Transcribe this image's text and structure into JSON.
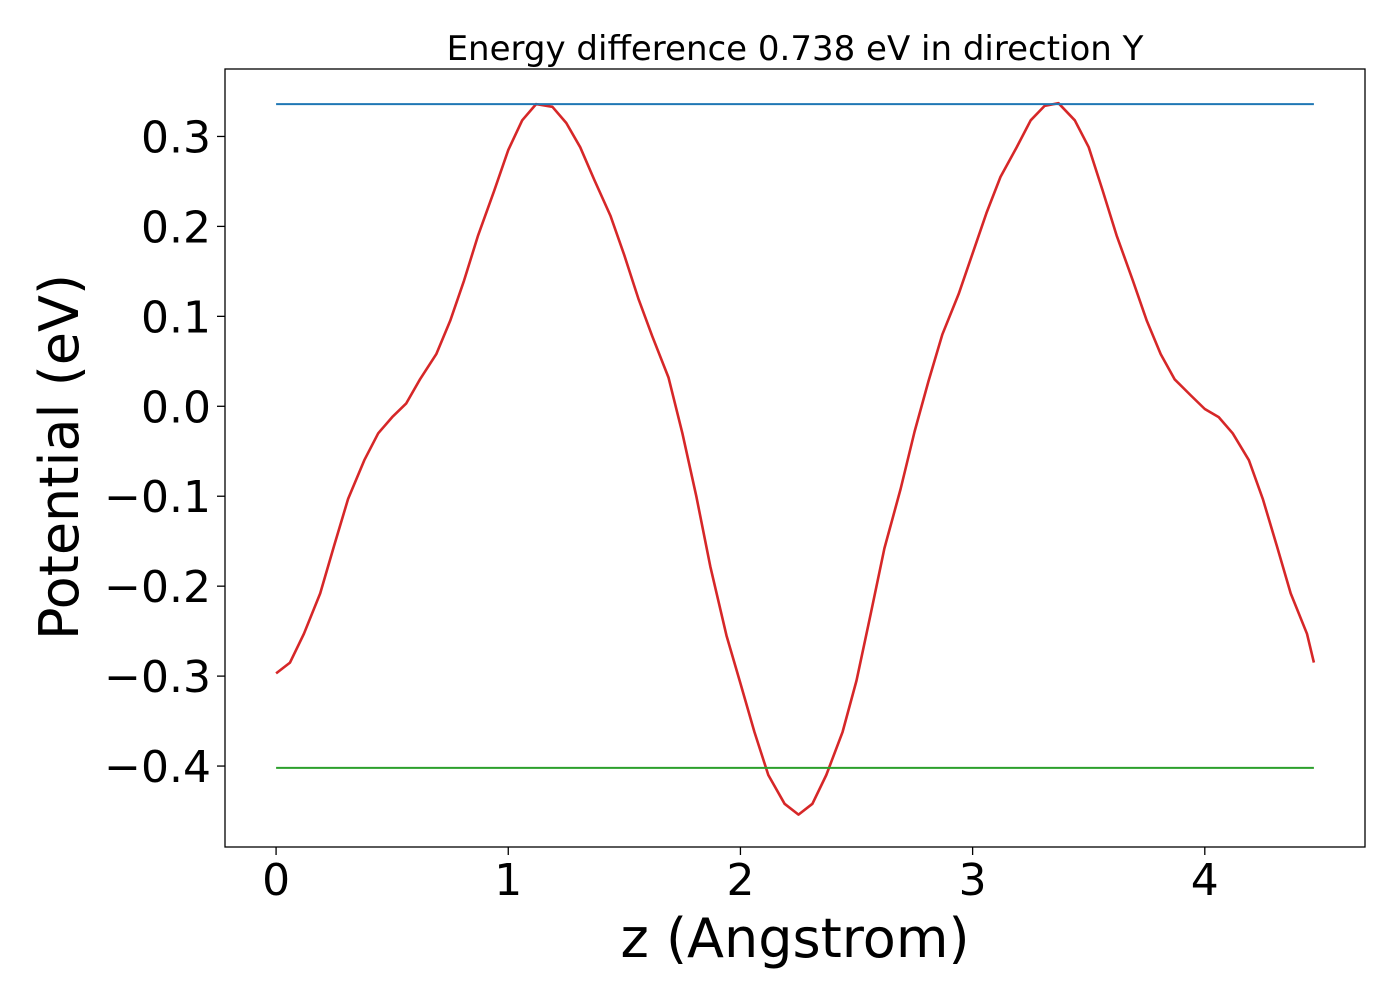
{
  "chart_data": {
    "type": "line",
    "title": "Energy difference 0.738 eV in direction Y",
    "xlabel": "z (Angstrom)",
    "ylabel": "Potential (eV)",
    "xlim": [
      -0.22,
      4.69
    ],
    "ylim": [
      -0.49,
      0.375
    ],
    "xticks": [
      0,
      1,
      2,
      3,
      4
    ],
    "xtick_labels": [
      "0",
      "1",
      "2",
      "3",
      "4"
    ],
    "yticks": [
      0.3,
      0.2,
      0.1,
      0.0,
      -0.1,
      -0.2,
      -0.3,
      -0.4
    ],
    "ytick_labels": [
      "0.3",
      "0.2",
      "0.1",
      "0.0",
      "−0.1",
      "−0.2",
      "−0.3",
      "−0.4"
    ],
    "grid": false,
    "series": [
      {
        "color": "#d62728",
        "x": [
          0.0,
          0.06,
          0.12,
          0.19,
          0.25,
          0.31,
          0.38,
          0.44,
          0.5,
          0.56,
          0.62,
          0.69,
          0.75,
          0.81,
          0.87,
          0.94,
          1.0,
          1.06,
          1.12,
          1.19,
          1.25,
          1.31,
          1.37,
          1.44,
          1.5,
          1.56,
          1.62,
          1.69,
          1.75,
          1.81,
          1.87,
          1.94,
          2.0,
          2.06,
          2.12,
          2.19,
          2.25,
          2.31,
          2.37,
          2.44,
          2.5,
          2.56,
          2.62,
          2.69,
          2.75,
          2.81,
          2.87,
          2.94,
          3.0,
          3.06,
          3.12,
          3.19,
          3.25,
          3.31,
          3.37,
          3.44,
          3.5,
          3.56,
          3.62,
          3.69,
          3.75,
          3.81,
          3.87,
          3.94,
          4.0,
          4.06,
          4.12,
          4.19,
          4.25,
          4.31,
          4.37,
          4.44,
          4.47
        ],
        "y": [
          -0.297,
          -0.285,
          -0.253,
          -0.208,
          -0.155,
          -0.103,
          -0.06,
          -0.03,
          -0.012,
          0.003,
          0.03,
          0.058,
          0.095,
          0.14,
          0.19,
          0.24,
          0.285,
          0.318,
          0.336,
          0.333,
          0.315,
          0.288,
          0.252,
          0.212,
          0.168,
          0.12,
          0.078,
          0.032,
          -0.03,
          -0.1,
          -0.178,
          -0.255,
          -0.308,
          -0.362,
          -0.41,
          -0.442,
          -0.454,
          -0.442,
          -0.41,
          -0.362,
          -0.305,
          -0.232,
          -0.158,
          -0.092,
          -0.028,
          0.028,
          0.08,
          0.125,
          0.17,
          0.215,
          0.255,
          0.288,
          0.318,
          0.334,
          0.337,
          0.318,
          0.288,
          0.24,
          0.19,
          0.14,
          0.095,
          0.058,
          0.03,
          0.012,
          -0.003,
          -0.012,
          -0.03,
          -0.06,
          -0.103,
          -0.155,
          -0.208,
          -0.253,
          -0.285
        ]
      },
      {
        "color": "#1f77b4",
        "x": [
          0.0,
          4.47
        ],
        "y": [
          0.336,
          0.336
        ]
      },
      {
        "color": "#2ca02c",
        "x": [
          0.0,
          4.47
        ],
        "y": [
          -0.402,
          -0.402
        ]
      }
    ]
  }
}
